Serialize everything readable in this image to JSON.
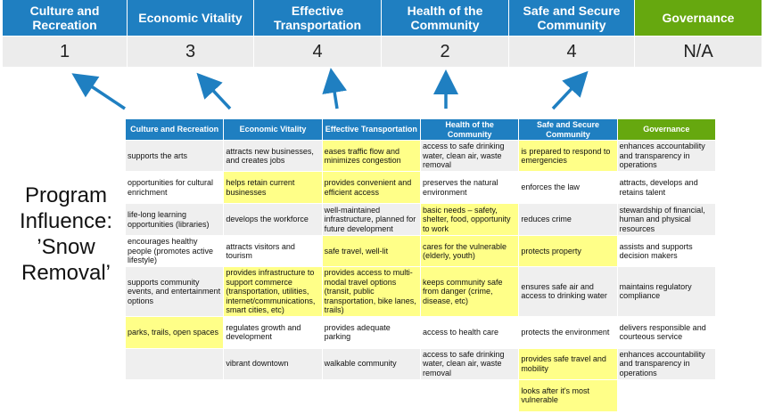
{
  "scores": {
    "columns": [
      {
        "label": "Culture and Recreation",
        "score": "1"
      },
      {
        "label": "Economic Vitality",
        "score": "3"
      },
      {
        "label": "Effective Transportation",
        "score": "4"
      },
      {
        "label": "Health of the Community",
        "score": "2"
      },
      {
        "label": "Safe and Secure Community",
        "score": "4"
      },
      {
        "label": "Governance",
        "score": "N/A"
      }
    ]
  },
  "program_label": "Program Influence: ’Snow Removal’",
  "colors": {
    "header_blue": "#1f7fc1",
    "governance_green": "#66a80f",
    "highlight": "#ffff88",
    "arrow": "#1f7fc1"
  },
  "table": {
    "headers": [
      "Culture and Recreation",
      "Economic Vitality",
      "Effective Transportation",
      "Health of the Community",
      "Safe and Secure Community",
      "Governance"
    ],
    "rows": [
      [
        {
          "t": "supports the arts"
        },
        {
          "t": "attracts new businesses, and creates jobs"
        },
        {
          "t": "eases traffic flow and minimizes congestion",
          "h": true
        },
        {
          "t": "access to safe drinking water, clean air, waste removal"
        },
        {
          "t": "is prepared to respond to emergencies",
          "h": true
        },
        {
          "t": "enhances accountability and transparency in operations"
        }
      ],
      [
        {
          "t": "opportunities for cultural enrichment"
        },
        {
          "t": "helps retain current businesses",
          "h": true
        },
        {
          "t": "provides convenient and efficient access",
          "h": true
        },
        {
          "t": "preserves the natural environment"
        },
        {
          "t": "enforces the law"
        },
        {
          "t": "attracts, develops and retains talent"
        }
      ],
      [
        {
          "t": "life-long learning opportunities (libraries)"
        },
        {
          "t": "develops the workforce"
        },
        {
          "t": "well-maintained infrastructure, planned for future development"
        },
        {
          "t": "basic needs – safety, shelter, food, opportunity to work",
          "h": true
        },
        {
          "t": "reduces crime"
        },
        {
          "t": "stewardship of financial, human and physical resources"
        }
      ],
      [
        {
          "t": "encourages healthy people (promotes active lifestyle)"
        },
        {
          "t": "attracts visitors and tourism"
        },
        {
          "t": "safe travel, well-lit",
          "h": true
        },
        {
          "t": "cares for the vulnerable (elderly, youth)",
          "h": true
        },
        {
          "t": "protects property",
          "h": true
        },
        {
          "t": "assists and supports decision makers"
        }
      ],
      [
        {
          "t": "supports community events, and entertainment options"
        },
        {
          "t": "provides infrastructure to support commerce (transportation, utilities, internet/communications, smart cities, etc)",
          "h": true
        },
        {
          "t": "provides access to multi-modal travel options (transit, public transportation, bike lanes, trails)",
          "h": true
        },
        {
          "t": "keeps community safe from danger (crime, disease, etc)",
          "h": true
        },
        {
          "t": "ensures safe air and access to drinking water"
        },
        {
          "t": "maintains regulatory compliance"
        }
      ],
      [
        {
          "t": "parks, trails, open spaces",
          "h": true
        },
        {
          "t": "regulates growth and development"
        },
        {
          "t": "provides adequate parking"
        },
        {
          "t": "access to health care"
        },
        {
          "t": "protects the environment"
        },
        {
          "t": "delivers responsible and courteous service"
        }
      ],
      [
        {
          "t": ""
        },
        {
          "t": "vibrant downtown"
        },
        {
          "t": "walkable community"
        },
        {
          "t": "access to safe drinking water, clean air, waste removal"
        },
        {
          "t": "provides safe travel and mobility",
          "h": true
        },
        {
          "t": "enhances accountability and transparency in operations"
        }
      ],
      [
        {
          "t": ""
        },
        {
          "t": ""
        },
        {
          "t": ""
        },
        {
          "t": ""
        },
        {
          "t": "looks after it's most vulnerable",
          "h": true
        },
        {
          "t": ""
        }
      ]
    ]
  }
}
